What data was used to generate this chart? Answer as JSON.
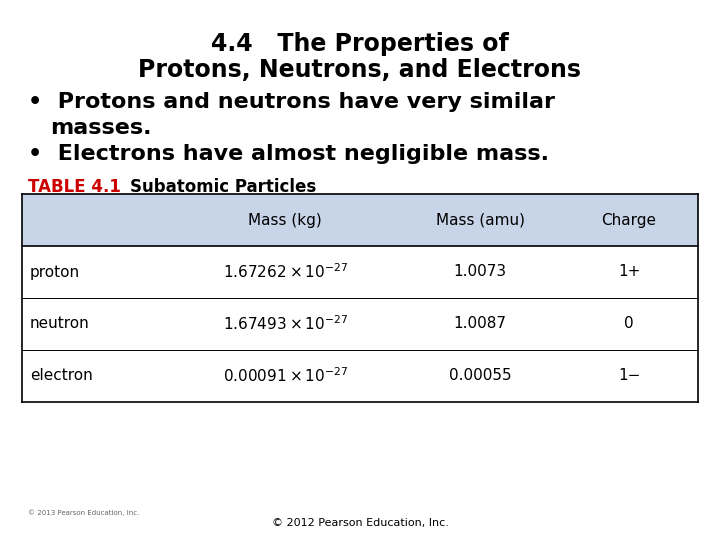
{
  "title_line1": "4.4   The Properties of",
  "title_line2": "Protons, Neutrons, and Electrons",
  "bullet1_line1": "Protons and neutrons have very similar",
  "bullet1_line2": "masses.",
  "bullet2": "Electrons have almost negligible mass.",
  "table_label_bold": "TABLE 4.1",
  "table_label_normal": "Subatomic Particles",
  "col_headers": [
    "Mass (kg)",
    "Mass (amu)",
    "Charge"
  ],
  "rows": [
    [
      "proton",
      "1.67262 × 10",
      "⁻²⁷",
      "1.0073",
      "1+"
    ],
    [
      "neutron",
      "1.67493 × 10",
      "⁻²⁷",
      "1.0087",
      "0"
    ],
    [
      "electron",
      "0.00091 × 10",
      "⁻²⁷",
      "0.00055",
      "1−"
    ]
  ],
  "table_header_bg": "#c8d4e8",
  "table_border_color": "#000000",
  "title_color": "#000000",
  "bullet_color": "#000000",
  "table_label_color": "#cc0000",
  "header_text_color": "#000000",
  "row_text_color": "#000000",
  "copyright_small": "© 2013 Pearson Education, Inc.",
  "copyright_bottom": "© 2012 Pearson Education, Inc.",
  "bg_color": "#ffffff",
  "title_fontsize": 17,
  "bullet_fontsize": 16,
  "table_fontsize": 11
}
